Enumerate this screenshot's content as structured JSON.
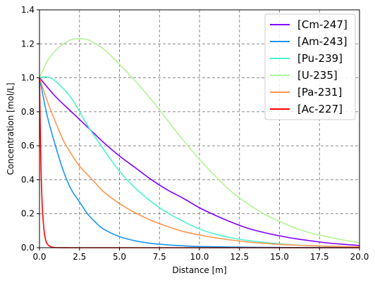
{
  "chart_data": {
    "type": "line",
    "xlabel": "Distance [m]",
    "ylabel": "Concentration [mol/L]",
    "xlim": [
      0.0,
      20.0
    ],
    "ylim": [
      0.0,
      1.4
    ],
    "x_ticks": [
      "0.0",
      "2.5",
      "5.0",
      "7.5",
      "10.0",
      "12.5",
      "15.0",
      "17.5",
      "20.0"
    ],
    "y_ticks": [
      "0.0",
      "0.2",
      "0.4",
      "0.6",
      "0.8",
      "1.0",
      "1.2",
      "1.4"
    ],
    "grid": true,
    "legend_position": "top-right",
    "series": [
      {
        "name": "[Cm-247]",
        "color": "#8000ff",
        "x": [
          0,
          1,
          2,
          3,
          4,
          5,
          6,
          7,
          8,
          9,
          10,
          11,
          12,
          13,
          14,
          15,
          16,
          17,
          18,
          19,
          20
        ],
        "y": [
          1.0,
          0.89,
          0.8,
          0.71,
          0.62,
          0.54,
          0.47,
          0.4,
          0.34,
          0.29,
          0.235,
          0.19,
          0.15,
          0.115,
          0.09,
          0.07,
          0.053,
          0.04,
          0.028,
          0.02,
          0.013
        ]
      },
      {
        "name": "[Am-243]",
        "color": "#1996f3",
        "x": [
          0,
          0.5,
          1,
          1.5,
          2,
          2.5,
          3,
          3.5,
          4,
          5,
          6,
          7,
          8,
          9,
          10,
          12,
          14,
          16,
          18,
          20
        ],
        "y": [
          1.0,
          0.77,
          0.6,
          0.45,
          0.34,
          0.27,
          0.2,
          0.15,
          0.11,
          0.065,
          0.04,
          0.025,
          0.017,
          0.011,
          0.007,
          0.004,
          0.002,
          0.001,
          0.0005,
          0.0002
        ]
      },
      {
        "name": "[Pu-239]",
        "color": "#4df3ce",
        "x": [
          0,
          0.5,
          1,
          2,
          3,
          4,
          5,
          6,
          7,
          8,
          9,
          10,
          11,
          12,
          13,
          14,
          15,
          16,
          17,
          18,
          19,
          20
        ],
        "y": [
          1.0,
          1.005,
          0.98,
          0.88,
          0.72,
          0.58,
          0.45,
          0.35,
          0.27,
          0.205,
          0.155,
          0.11,
          0.08,
          0.058,
          0.043,
          0.032,
          0.023,
          0.016,
          0.011,
          0.008,
          0.005,
          0.003
        ]
      },
      {
        "name": "[U-235]",
        "color": "#b3f396",
        "x": [
          0,
          0.5,
          1,
          1.5,
          2,
          2.5,
          3,
          3.5,
          4,
          5,
          6,
          7,
          8,
          9,
          10,
          11,
          12,
          13,
          14,
          15,
          16,
          17,
          18,
          19,
          20
        ],
        "y": [
          1.0,
          1.1,
          1.16,
          1.2,
          1.225,
          1.23,
          1.225,
          1.2,
          1.17,
          1.08,
          0.98,
          0.87,
          0.75,
          0.63,
          0.52,
          0.42,
          0.33,
          0.26,
          0.2,
          0.155,
          0.115,
          0.085,
          0.065,
          0.045,
          0.03
        ]
      },
      {
        "name": "[Pa-231]",
        "color": "#ff964f",
        "x": [
          0,
          0.5,
          1,
          1.5,
          2,
          2.5,
          3,
          3.5,
          4,
          5,
          6,
          7,
          8,
          9,
          10,
          11,
          12,
          13,
          14,
          15,
          16,
          17,
          18,
          19,
          20
        ],
        "y": [
          1.0,
          0.86,
          0.74,
          0.63,
          0.55,
          0.48,
          0.43,
          0.38,
          0.33,
          0.26,
          0.205,
          0.16,
          0.125,
          0.095,
          0.075,
          0.058,
          0.045,
          0.034,
          0.026,
          0.02,
          0.015,
          0.012,
          0.009,
          0.007,
          0.005
        ]
      },
      {
        "name": "[Ac-227]",
        "color": "#ff0000",
        "x": [
          0,
          0.05,
          0.1,
          0.15,
          0.2,
          0.3,
          0.4,
          0.5,
          0.7,
          1.0,
          2,
          5,
          10,
          15,
          20
        ],
        "y": [
          1.0,
          0.7,
          0.45,
          0.3,
          0.2,
          0.09,
          0.04,
          0.02,
          0.006,
          0.001,
          0.0,
          0.0,
          0.0,
          0.0,
          0.0
        ]
      }
    ]
  }
}
